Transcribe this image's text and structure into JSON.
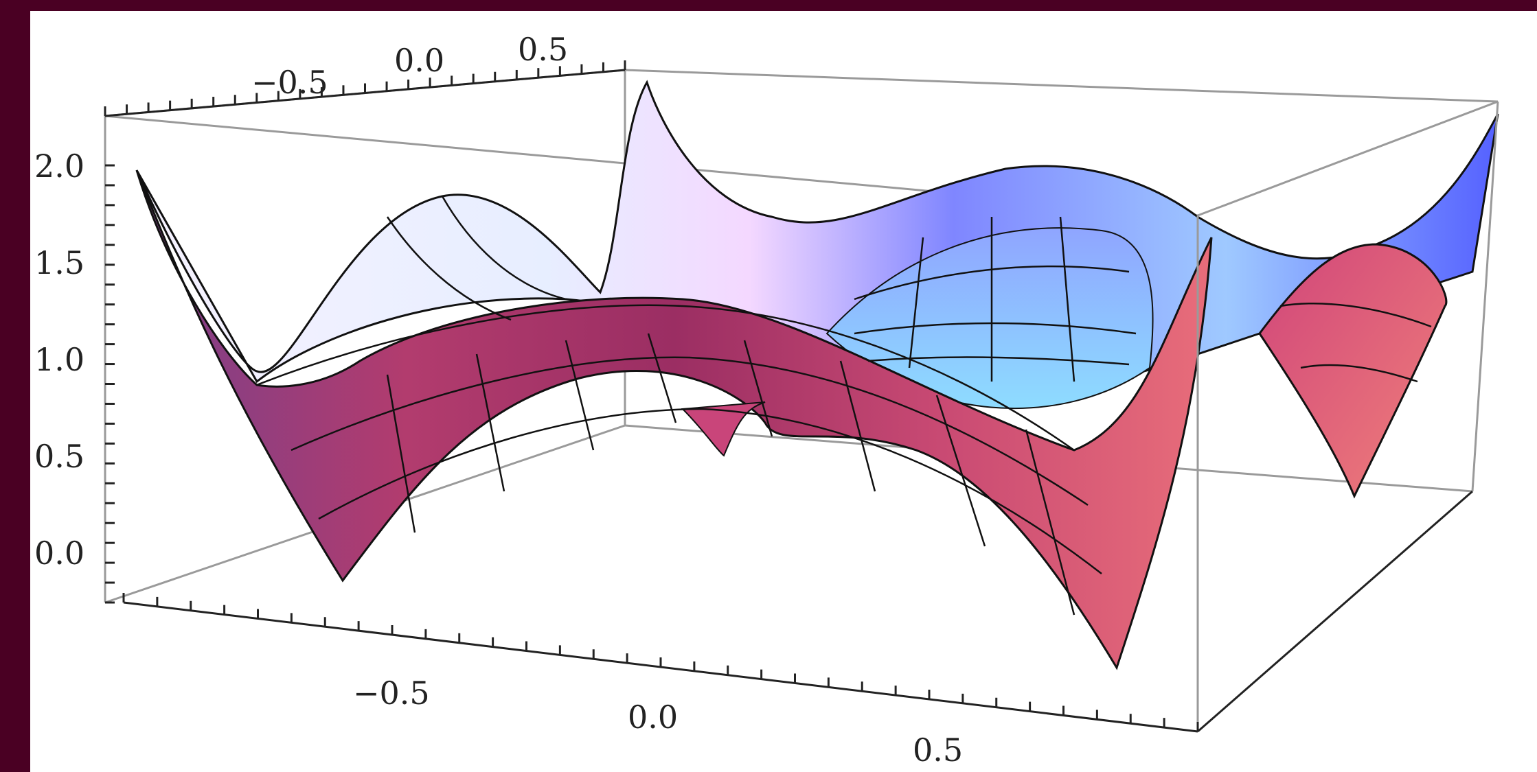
{
  "chart_data": {
    "type": "surface3d",
    "title": "",
    "xlabel": "",
    "ylabel": "",
    "zlabel": "",
    "x_ticks": [
      "−0.5",
      "0.0",
      "0.5"
    ],
    "y_ticks": [
      "−0.5",
      "0.0",
      "0.5"
    ],
    "z_ticks": [
      "0.0",
      "0.5",
      "1.0",
      "1.5",
      "2.0"
    ],
    "x_range": [
      -1,
      1
    ],
    "y_range": [
      -1,
      1
    ],
    "z_range": [
      0,
      2.2
    ],
    "mesh_lines": true,
    "box": true,
    "colors": {
      "background": "#4a0023",
      "front_surface": "#b8346a",
      "back_surface": "#6f7dff",
      "mesh": "#111111"
    }
  }
}
